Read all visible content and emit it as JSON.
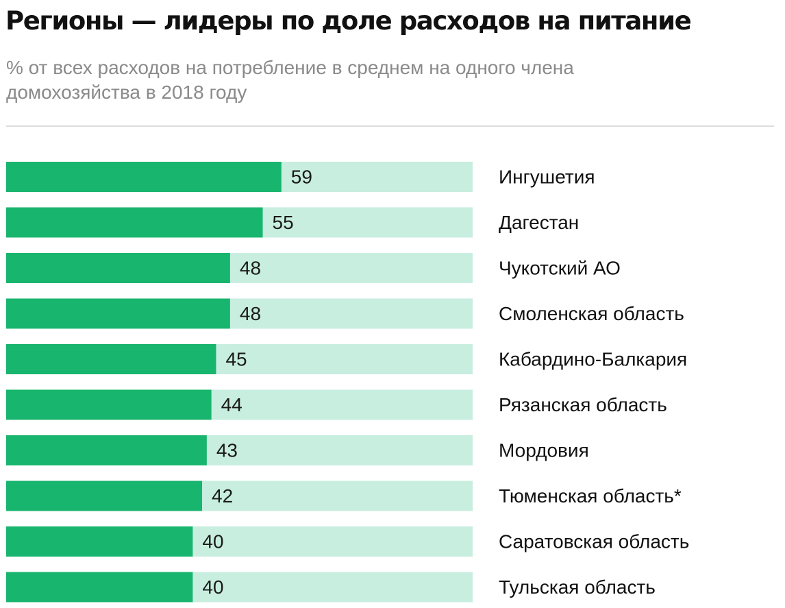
{
  "colors": {
    "bar_fill": "#18b56e",
    "bar_track": "#c8eee0"
  },
  "chart_data": {
    "type": "bar",
    "orientation": "horizontal",
    "title": "Регионы — лидеры по доле расходов на питание",
    "subtitle": "% от всех расходов на потребление в среднем на одного члена домохозяйства в 2018 году",
    "categories": [
      "Ингушетия",
      "Дагестан",
      "Чукотский АО",
      "Смоленская область",
      "Кабардино-Балкария",
      "Рязанская область",
      "Мордовия",
      "Тюменская область*",
      "Саратовская область",
      "Тульская область"
    ],
    "values": [
      59,
      55,
      48,
      48,
      45,
      44,
      43,
      42,
      40,
      40
    ],
    "value_labels": [
      "59",
      "55",
      "48",
      "48",
      "45",
      "44",
      "43",
      "42",
      "40",
      "40"
    ],
    "xlim": [
      0,
      100
    ],
    "grid": false,
    "legend": "none",
    "xlabel": "",
    "ylabel": ""
  }
}
